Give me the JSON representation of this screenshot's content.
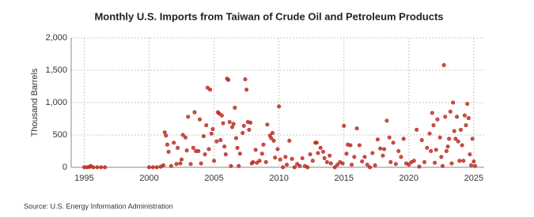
{
  "chart_data": {
    "type": "scatter",
    "title": "Monthly U.S. Imports from Taiwan of Crude Oil and Petroleum Products",
    "ylabel": "Thousand Barrels",
    "source": "Source: U.S. Energy Information Administration",
    "xlim": [
      1994,
      2025.8
    ],
    "xticks": [
      1995,
      2000,
      2005,
      2010,
      2015,
      2020,
      2025
    ],
    "ylim": [
      0,
      2000
    ],
    "yticks": [
      0,
      500,
      {
        "value": 1000,
        "label": "1,000"
      },
      {
        "value": 1500,
        "label": "1,500"
      },
      {
        "value": 2000,
        "label": "2,000"
      }
    ],
    "grid": true,
    "series": [
      {
        "color": "#b8261c",
        "x": [
          1995.0,
          1995.2,
          1995.4,
          1995.5,
          1995.7,
          1996.0,
          1996.3,
          1996.6,
          2000.0,
          2000.3,
          2000.6,
          2000.9,
          2001.1,
          2001.2,
          2001.3,
          2001.4,
          2001.5,
          2001.7,
          2001.9,
          2002.1,
          2002.2,
          2002.4,
          2002.5,
          2002.6,
          2002.8,
          2002.9,
          2003.0,
          2003.2,
          2003.4,
          2003.5,
          2003.6,
          2003.8,
          2003.9,
          2004.0,
          2004.2,
          2004.3,
          2004.4,
          2004.5,
          2004.6,
          2004.7,
          2004.8,
          2004.9,
          2005.0,
          2005.2,
          2005.3,
          2005.4,
          2005.5,
          2005.6,
          2005.7,
          2005.8,
          2005.9,
          2006.0,
          2006.1,
          2006.2,
          2006.3,
          2006.4,
          2006.5,
          2006.6,
          2006.7,
          2006.8,
          2006.9,
          2007.0,
          2007.2,
          2007.3,
          2007.4,
          2007.5,
          2007.6,
          2007.7,
          2007.8,
          2007.9,
          2008.0,
          2008.2,
          2008.3,
          2008.5,
          2008.7,
          2008.8,
          2009.0,
          2009.1,
          2009.3,
          2009.4,
          2009.5,
          2009.6,
          2009.7,
          2009.9,
          2010.0,
          2010.1,
          2010.3,
          2010.5,
          2010.6,
          2010.8,
          2011.0,
          2011.2,
          2011.4,
          2011.6,
          2011.8,
          2012.0,
          2012.2,
          2012.4,
          2012.6,
          2012.8,
          2012.9,
          2013.0,
          2013.2,
          2013.4,
          2013.5,
          2013.7,
          2013.9,
          2014.0,
          2014.3,
          2014.5,
          2014.7,
          2014.9,
          2015.0,
          2015.2,
          2015.3,
          2015.5,
          2015.6,
          2015.8,
          2016.0,
          2016.2,
          2016.4,
          2016.6,
          2016.8,
          2017.0,
          2017.2,
          2017.4,
          2017.6,
          2017.8,
          2018.0,
          2018.1,
          2018.3,
          2018.5,
          2018.6,
          2018.8,
          2019.0,
          2019.2,
          2019.4,
          2019.6,
          2019.8,
          2020.0,
          2020.2,
          2020.4,
          2020.6,
          2020.8,
          2021.0,
          2021.2,
          2021.4,
          2021.6,
          2021.7,
          2021.8,
          2021.9,
          2022.0,
          2022.1,
          2022.2,
          2022.4,
          2022.5,
          2022.6,
          2022.7,
          2022.8,
          2022.9,
          2023.0,
          2023.1,
          2023.2,
          2023.3,
          2023.4,
          2023.5,
          2023.6,
          2023.7,
          2023.8,
          2023.9,
          2024.0,
          2024.1,
          2024.2,
          2024.3,
          2024.4,
          2024.5,
          2024.6,
          2024.7,
          2024.8,
          2024.9,
          2025.0,
          2025.1
        ],
        "values": [
          0,
          0,
          5,
          20,
          0,
          0,
          0,
          0,
          0,
          0,
          0,
          10,
          30,
          540,
          490,
          350,
          240,
          20,
          380,
          50,
          300,
          60,
          120,
          500,
          460,
          260,
          780,
          50,
          300,
          850,
          250,
          250,
          740,
          60,
          480,
          200,
          650,
          1230,
          280,
          1200,
          520,
          590,
          100,
          400,
          850,
          830,
          420,
          800,
          680,
          320,
          200,
          1370,
          1350,
          700,
          20,
          620,
          670,
          920,
          450,
          300,
          20,
          210,
          530,
          640,
          1360,
          1200,
          700,
          580,
          690,
          60,
          80,
          270,
          70,
          100,
          210,
          350,
          80,
          660,
          490,
          450,
          530,
          410,
          150,
          280,
          940,
          120,
          0,
          160,
          40,
          410,
          130,
          0,
          50,
          20,
          140,
          20,
          0,
          200,
          100,
          380,
          380,
          220,
          300,
          240,
          140,
          80,
          180,
          60,
          0,
          40,
          80,
          60,
          640,
          210,
          350,
          340,
          40,
          160,
          600,
          340,
          90,
          160,
          40,
          0,
          220,
          30,
          430,
          290,
          180,
          280,
          720,
          460,
          80,
          380,
          50,
          250,
          160,
          440,
          60,
          40,
          80,
          100,
          580,
          10,
          420,
          80,
          300,
          520,
          250,
          840,
          650,
          70,
          270,
          740,
          460,
          160,
          20,
          1580,
          780,
          250,
          320,
          440,
          860,
          60,
          1000,
          560,
          440,
          780,
          400,
          100,
          580,
          340,
          100,
          800,
          650,
          980,
          760,
          200,
          30,
          440,
          90,
          20
        ]
      }
    ]
  }
}
